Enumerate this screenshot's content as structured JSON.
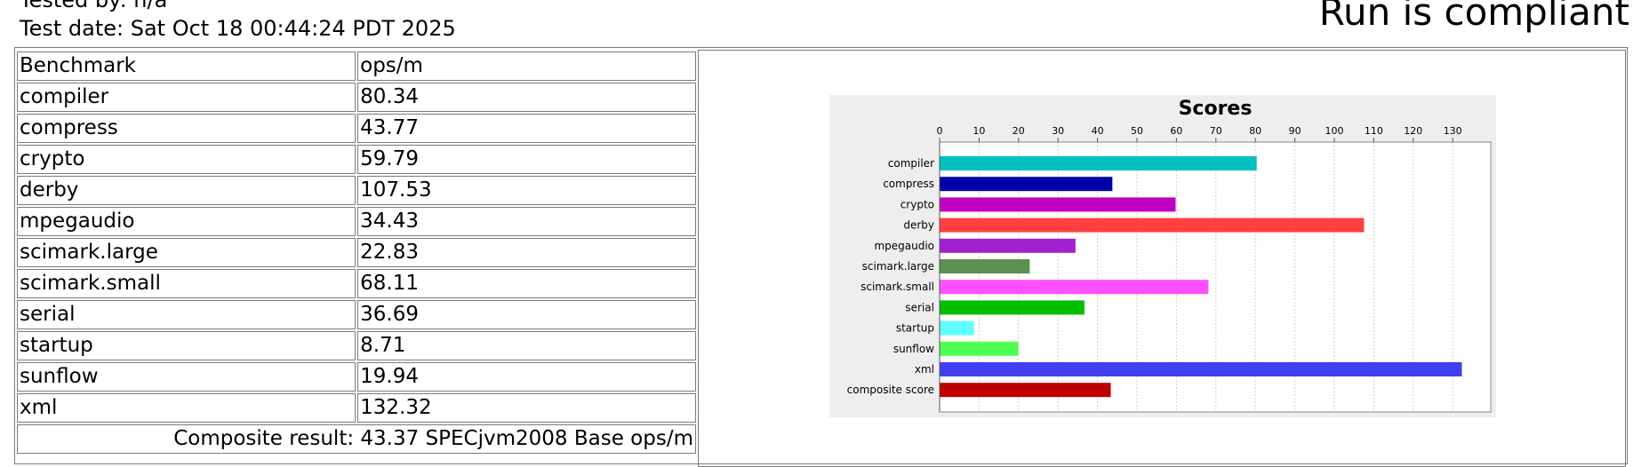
{
  "header": {
    "tested_by": "Tested by: n/a",
    "test_date": "Test date: Sat Oct 18 00:44:24 PDT 2025",
    "status": "Run is compliant"
  },
  "table": {
    "col_benchmark": "Benchmark",
    "col_score": "ops/m",
    "rows": [
      {
        "name": "compiler",
        "value": "80.34"
      },
      {
        "name": "compress",
        "value": "43.77"
      },
      {
        "name": "crypto",
        "value": "59.79"
      },
      {
        "name": "derby",
        "value": "107.53"
      },
      {
        "name": "mpegaudio",
        "value": "34.43"
      },
      {
        "name": "scimark.large",
        "value": "22.83"
      },
      {
        "name": "scimark.small",
        "value": "68.11"
      },
      {
        "name": "serial",
        "value": "36.69"
      },
      {
        "name": "startup",
        "value": "8.71"
      },
      {
        "name": "sunflow",
        "value": "19.94"
      },
      {
        "name": "xml",
        "value": "132.32"
      }
    ],
    "composite": "Composite result: 43.37 SPECjvm2008 Base ops/m"
  },
  "chart_data": {
    "type": "bar",
    "orientation": "horizontal",
    "title": "Scores",
    "categories": [
      "compiler",
      "compress",
      "crypto",
      "derby",
      "mpegaudio",
      "scimark.large",
      "scimark.small",
      "serial",
      "startup",
      "sunflow",
      "xml",
      "composite score"
    ],
    "values": [
      80.34,
      43.77,
      59.79,
      107.53,
      34.43,
      22.83,
      68.11,
      36.69,
      8.71,
      19.94,
      132.32,
      43.37
    ],
    "colors": [
      "#00c0c0",
      "#0000a8",
      "#c000c0",
      "#ff4040",
      "#a020d0",
      "#5a9050",
      "#ff50ff",
      "#00c000",
      "#60ffff",
      "#50ff50",
      "#4040f0",
      "#c00000"
    ],
    "xlim": [
      0,
      140
    ],
    "xticks": [
      0,
      10,
      20,
      30,
      40,
      50,
      60,
      70,
      80,
      90,
      100,
      110,
      120,
      130
    ],
    "axis_position": "top",
    "grid": true,
    "legend": "none"
  }
}
